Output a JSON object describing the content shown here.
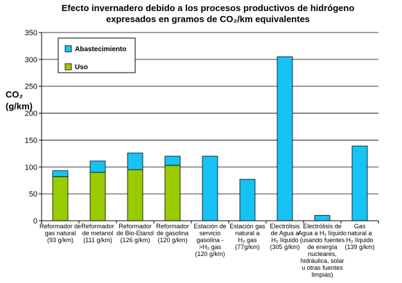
{
  "chart_data": {
    "type": "bar",
    "stacked": true,
    "title_lines": [
      "Efecto invernadero debido a los procesos productivos de hidrógeno",
      "expresados en gramos de CO₂/km equivalentes"
    ],
    "ylabel_lines": [
      "CO₂",
      "(g/km)"
    ],
    "ylim": [
      0,
      350
    ],
    "yticks": [
      0,
      50,
      100,
      150,
      200,
      250,
      300,
      350
    ],
    "grid": true,
    "legend_position": "top-left",
    "colors": {
      "Abastecimiento": "#17c3f5",
      "Uso": "#99cc00"
    },
    "categories": [
      [
        "Reformador de",
        "gas natural",
        "(93 g/km)"
      ],
      [
        "Reformador",
        "de metanol",
        "(111 g/km)"
      ],
      [
        "Reformador",
        "de Bio-Etanol",
        "(126 g/km)"
      ],
      [
        "Reformador",
        "de gasolina",
        "(120 g/km)"
      ],
      [
        "Estación de",
        "servicio",
        "gasolina -",
        ">H₂ gas",
        "(120 g/km)"
      ],
      [
        "Estación gas",
        "natural a",
        "H₂ gas",
        "(77g/km)"
      ],
      [
        "Electrólisis",
        "de Agua a",
        "H₂ líquido",
        "(305 g/km)"
      ],
      [
        "Electrólisis de",
        "Agua a H₂ líquido",
        "(usando fuentes",
        "de energía",
        "nucleares,",
        "hidráulica, solar",
        "u otras fuentes",
        "limpias)"
      ],
      [
        "Gas",
        "natural a",
        "H₂ líquido",
        "(139 g/km)"
      ]
    ],
    "series": [
      {
        "name": "Uso",
        "values": [
          82,
          90,
          95,
          103,
          0,
          0,
          0,
          0,
          0
        ]
      },
      {
        "name": "Abastecimiento",
        "values": [
          11,
          21,
          31,
          17,
          120,
          77,
          305,
          10,
          139
        ]
      }
    ],
    "legend": [
      "Abastecimiento",
      "Uso"
    ]
  }
}
